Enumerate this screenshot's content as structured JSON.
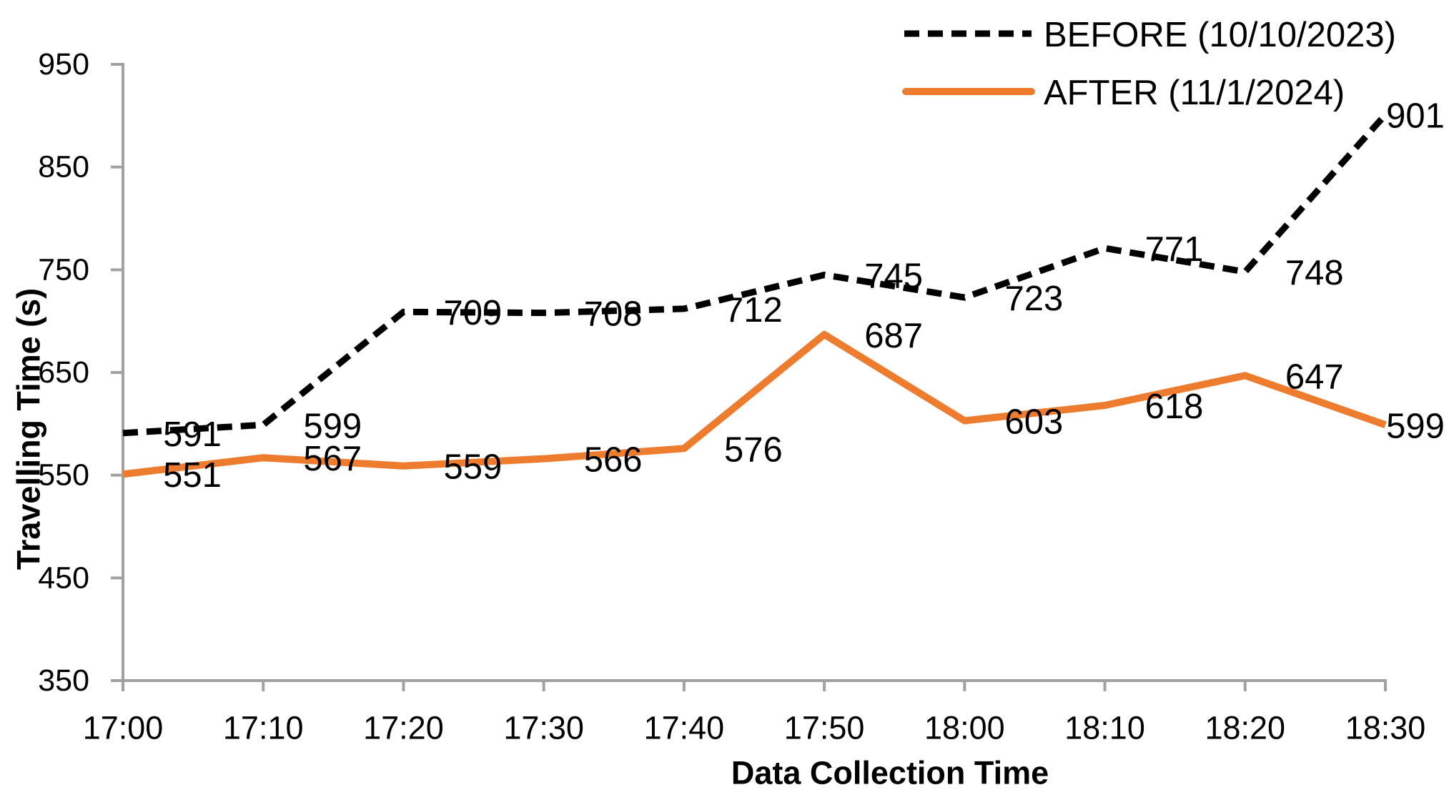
{
  "page": {
    "background": "#FFFFFF"
  },
  "chart_data": {
    "type": "line",
    "title": "",
    "xlabel": "Data Collection Time",
    "ylabel": "Travelling Time (s)",
    "categories": [
      "17:00",
      "17:10",
      "17:20",
      "17:30",
      "17:40",
      "17:50",
      "18:00",
      "18:10",
      "18:20",
      "18:30"
    ],
    "series": [
      {
        "name": "BEFORE (10/10/2023)",
        "color": "#000000",
        "line_style": "dashed",
        "values": [
          591,
          599,
          709,
          708,
          712,
          745,
          723,
          771,
          748,
          901
        ]
      },
      {
        "name": "AFTER (11/1/2024)",
        "color": "#EE7C2E",
        "line_style": "solid",
        "values": [
          551,
          567,
          559,
          566,
          576,
          687,
          603,
          618,
          647,
          599
        ]
      }
    ],
    "ylim": [
      350,
      950
    ],
    "yticks": [
      350,
      450,
      550,
      650,
      750,
      850,
      950
    ],
    "grid": false,
    "legend_position": "top-right",
    "data_labels": true,
    "axis_color": "#A1A1A1",
    "text_color": "#000000"
  }
}
